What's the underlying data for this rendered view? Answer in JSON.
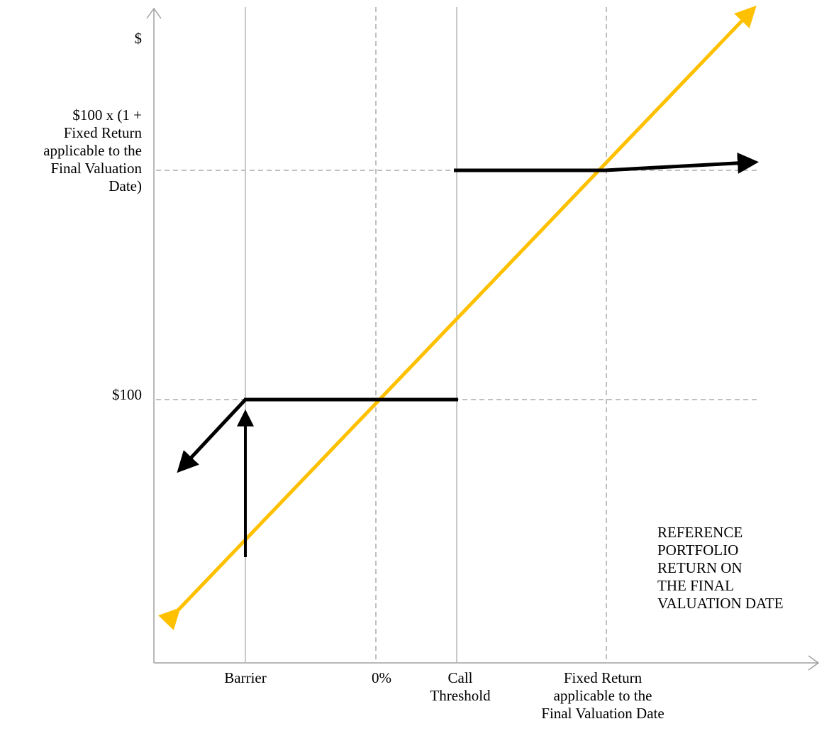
{
  "colors": {
    "payoff_line": "#000000",
    "reference_line": "#FFC000",
    "axis": "#a0a0a0",
    "guide_solid": "#c8c8c8",
    "guide_dashed": "#c0c0c0"
  },
  "y_axis": {
    "symbol": "$",
    "fixed_return_level": "$100 x (1 +\nFixed Return\napplicable to the\nFinal Valuation\nDate)",
    "par_level": "$100"
  },
  "x_axis": {
    "title": "REFERENCE\nPORTFOLIO\nRETURN ON\nTHE FINAL\nVALUATION DATE",
    "barrier": "Barrier",
    "zero": "0%",
    "call_threshold": "Call\nThreshold",
    "fixed_return": "Fixed Return\napplicable to the\nFinal Valuation Date"
  }
}
